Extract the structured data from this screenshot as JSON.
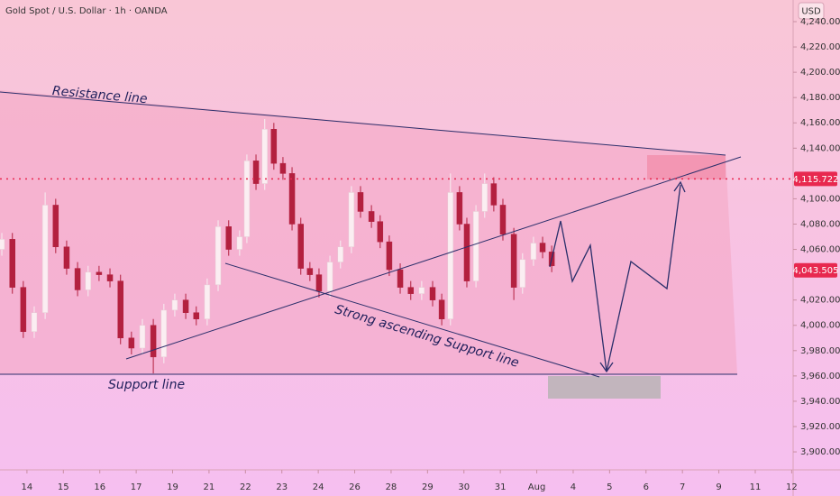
{
  "chart_data": {
    "type": "candlestick",
    "title": "Gold Spot / U.S. Dollar · 1h · OANDA",
    "currency": "USD",
    "annotations": [
      "Resistance line",
      "Support line",
      "Strong ascending Support line"
    ],
    "up_color": "#fbeef2",
    "down_color": "#b3203f",
    "ylim": [
      3886.5,
      4257.1
    ],
    "yticks": [
      {
        "value": 3900,
        "label": "3,900.000"
      },
      {
        "value": 3920,
        "label": "3,920.000"
      },
      {
        "value": 3940,
        "label": "3,940.000"
      },
      {
        "value": 3960,
        "label": "3,960.000"
      },
      {
        "value": 3980,
        "label": "3,980.000"
      },
      {
        "value": 4000,
        "label": "4,000.000"
      },
      {
        "value": 4020,
        "label": "4,020.000"
      },
      {
        "value": 4060,
        "label": "4,060.000"
      },
      {
        "value": 4080,
        "label": "4,080.000"
      },
      {
        "value": 4100,
        "label": "4,100.000"
      },
      {
        "value": 4140,
        "label": "4,140.000"
      },
      {
        "value": 4160,
        "label": "4,160.000"
      },
      {
        "value": 4180,
        "label": "4,180.000"
      },
      {
        "value": 4200,
        "label": "4,200.000"
      },
      {
        "value": 4220,
        "label": "4,220.000"
      },
      {
        "value": 4240,
        "label": "4,240.000"
      }
    ],
    "xlim": [
      -0.74,
      21.04
    ],
    "xticks": [
      {
        "value": 0,
        "label": "14"
      },
      {
        "value": 1,
        "label": "15"
      },
      {
        "value": 2,
        "label": "16"
      },
      {
        "value": 3,
        "label": "17"
      },
      {
        "value": 4,
        "label": "19"
      },
      {
        "value": 5,
        "label": "21"
      },
      {
        "value": 6,
        "label": "22"
      },
      {
        "value": 7,
        "label": "23"
      },
      {
        "value": 8,
        "label": "24"
      },
      {
        "value": 9,
        "label": "26"
      },
      {
        "value": 10,
        "label": "28"
      },
      {
        "value": 11,
        "label": "29"
      },
      {
        "value": 12,
        "label": "30"
      },
      {
        "value": 13,
        "label": "31"
      },
      {
        "value": 14,
        "label": "Aug"
      },
      {
        "value": 15,
        "label": "4"
      },
      {
        "value": 16,
        "label": "5"
      },
      {
        "value": 17,
        "label": "6"
      },
      {
        "value": 18,
        "label": "7"
      },
      {
        "value": 19,
        "label": "9"
      },
      {
        "value": 20,
        "label": "11"
      },
      {
        "value": 21,
        "label": "12"
      }
    ],
    "price_lines": [
      {
        "value": 4115.722,
        "label": "4,115.722",
        "color": "#e8284f",
        "dotted": true
      },
      {
        "value": 4043.505,
        "label": "4,043.505",
        "color": "#e8284f",
        "dotted": false
      }
    ],
    "x": [
      -0.69,
      -0.4,
      -0.1,
      0.2,
      0.5,
      0.79,
      1.09,
      1.39,
      1.68,
      1.98,
      2.28,
      2.57,
      2.87,
      3.17,
      3.47,
      3.76,
      4.06,
      4.36,
      4.65,
      4.95,
      5.25,
      5.54,
      5.84,
      6.04,
      6.29,
      6.53,
      6.78,
      7.03,
      7.28,
      7.52,
      7.77,
      8.02,
      8.32,
      8.61,
      8.91,
      9.16,
      9.46,
      9.7,
      9.95,
      10.25,
      10.54,
      10.84,
      11.14,
      11.39,
      11.63,
      11.88,
      12.08,
      12.33,
      12.57,
      12.82,
      13.07,
      13.37,
      13.61,
      13.91,
      14.16,
      14.41
    ],
    "open": [
      4060,
      4068,
      4030,
      3995,
      4010,
      4095,
      4062,
      4045,
      4028,
      4042,
      4040,
      4035,
      3990,
      3982,
      4000,
      3975,
      4012,
      4020,
      4010,
      4005,
      4032,
      4078,
      4060,
      4070,
      4130,
      4112,
      4155,
      4128,
      4120,
      4080,
      4045,
      4040,
      4027,
      4050,
      4062,
      4105,
      4090,
      4082,
      4066,
      4044,
      4030,
      4025,
      4030,
      4020,
      4005,
      4105,
      4080,
      4035,
      4090,
      4112,
      4095,
      4072,
      4030,
      4052,
      4065,
      4058
    ],
    "high": [
      4073,
      4073,
      4035,
      4015,
      4105,
      4100,
      4067,
      4050,
      4047,
      4047,
      4045,
      4040,
      3995,
      4005,
      4005,
      4017,
      4025,
      4025,
      4015,
      4037,
      4083,
      4083,
      4075,
      4135,
      4135,
      4163,
      4160,
      4133,
      4125,
      4085,
      4050,
      4045,
      4055,
      4067,
      4110,
      4110,
      4095,
      4087,
      4071,
      4049,
      4035,
      4035,
      4035,
      4025,
      4120,
      4110,
      4085,
      4095,
      4120,
      4117,
      4100,
      4077,
      4057,
      4070,
      4070,
      4063
    ],
    "low": [
      4055,
      4025,
      3990,
      3990,
      4005,
      4057,
      4040,
      4023,
      4023,
      4035,
      4030,
      3985,
      3977,
      3977,
      3962,
      3970,
      4007,
      4005,
      4000,
      4000,
      4027,
      4055,
      4055,
      4065,
      4107,
      4107,
      4123,
      4115,
      4075,
      4040,
      4035,
      4022,
      4022,
      4045,
      4057,
      4085,
      4077,
      4061,
      4039,
      4025,
      4020,
      4020,
      4015,
      4000,
      4000,
      4075,
      4030,
      4030,
      4085,
      4090,
      4067,
      4020,
      4025,
      4047,
      4053,
      4042
    ],
    "close": [
      4068,
      4030,
      3995,
      4010,
      4095,
      4062,
      4045,
      4028,
      4042,
      4040,
      4035,
      3990,
      3982,
      4000,
      3975,
      4012,
      4020,
      4010,
      4005,
      4032,
      4078,
      4060,
      4070,
      4130,
      4112,
      4155,
      4128,
      4120,
      4080,
      4045,
      4040,
      4027,
      4050,
      4062,
      4105,
      4090,
      4082,
      4066,
      4044,
      4030,
      4025,
      4030,
      4020,
      4005,
      4105,
      4080,
      4035,
      4090,
      4112,
      4095,
      4072,
      4030,
      4052,
      4065,
      4058,
      4047
    ]
  }
}
